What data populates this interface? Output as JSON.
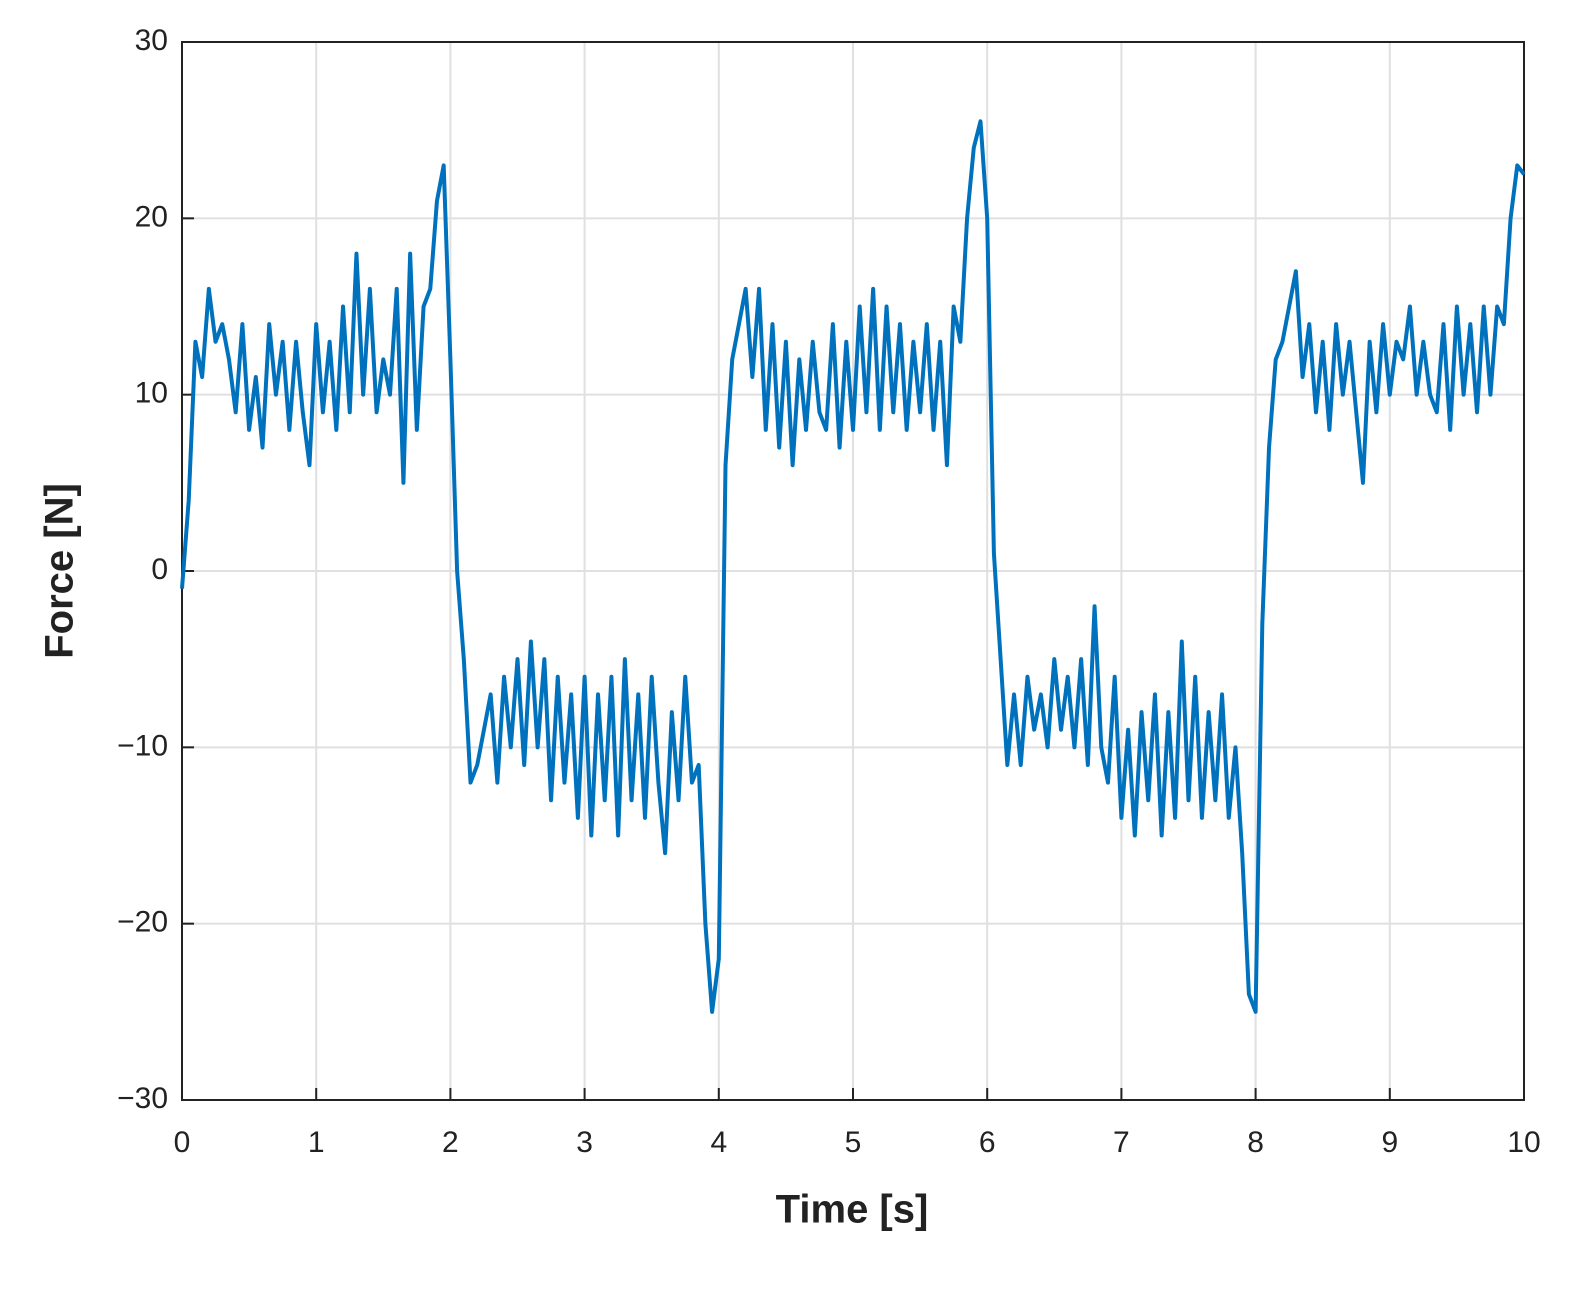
{
  "chart_data": {
    "type": "line",
    "x_label": "Time [s]",
    "y_label": "Force [N]",
    "x": [
      0,
      0.05,
      0.1,
      0.15,
      0.2,
      0.25,
      0.3,
      0.35,
      0.4,
      0.45,
      0.5,
      0.55,
      0.6,
      0.65,
      0.7,
      0.75,
      0.8,
      0.85,
      0.9,
      0.95,
      1,
      1.05,
      1.1,
      1.15,
      1.2,
      1.25,
      1.3,
      1.35,
      1.4,
      1.45,
      1.5,
      1.55,
      1.6,
      1.65,
      1.7,
      1.75,
      1.8,
      1.85,
      1.9,
      1.95,
      2,
      2.05,
      2.1,
      2.15,
      2.2,
      2.25,
      2.3,
      2.35,
      2.4,
      2.45,
      2.5,
      2.55,
      2.6,
      2.65,
      2.7,
      2.75,
      2.8,
      2.85,
      2.9,
      2.95,
      3,
      3.05,
      3.1,
      3.15,
      3.2,
      3.25,
      3.3,
      3.35,
      3.4,
      3.45,
      3.5,
      3.55,
      3.6,
      3.65,
      3.7,
      3.75,
      3.8,
      3.85,
      3.9,
      3.95,
      4,
      4.05,
      4.1,
      4.15,
      4.2,
      4.25,
      4.3,
      4.35,
      4.4,
      4.45,
      4.5,
      4.55,
      4.6,
      4.65,
      4.7,
      4.75,
      4.8,
      4.85,
      4.9,
      4.95,
      5,
      5.05,
      5.1,
      5.15,
      5.2,
      5.25,
      5.3,
      5.35,
      5.4,
      5.45,
      5.5,
      5.55,
      5.6,
      5.65,
      5.7,
      5.75,
      5.8,
      5.85,
      5.9,
      5.95,
      6,
      6.05,
      6.1,
      6.15,
      6.2,
      6.25,
      6.3,
      6.35,
      6.4,
      6.45,
      6.5,
      6.55,
      6.6,
      6.65,
      6.7,
      6.75,
      6.8,
      6.85,
      6.9,
      6.95,
      7,
      7.05,
      7.1,
      7.15,
      7.2,
      7.25,
      7.3,
      7.35,
      7.4,
      7.45,
      7.5,
      7.55,
      7.6,
      7.65,
      7.7,
      7.75,
      7.8,
      7.85,
      7.9,
      7.95,
      8,
      8.05,
      8.1,
      8.15,
      8.2,
      8.25,
      8.3,
      8.35,
      8.4,
      8.45,
      8.5,
      8.55,
      8.6,
      8.65,
      8.7,
      8.75,
      8.8,
      8.85,
      8.9,
      8.95,
      9,
      9.05,
      9.1,
      9.15,
      9.2,
      9.25,
      9.3,
      9.35,
      9.4,
      9.45,
      9.5,
      9.55,
      9.6,
      9.65,
      9.7,
      9.75,
      9.8,
      9.85,
      9.9,
      9.95,
      10
    ],
    "values": [
      -1,
      4,
      13,
      11,
      16,
      13,
      14,
      12,
      9,
      14,
      8,
      11,
      7,
      14,
      10,
      13,
      8,
      13,
      9,
      6,
      14,
      9,
      13,
      8,
      15,
      9,
      18,
      10,
      16,
      9,
      12,
      10,
      16,
      5,
      18,
      8,
      15,
      16,
      21,
      23,
      12,
      0,
      -5,
      -12,
      -11,
      -9,
      -7,
      -12,
      -6,
      -10,
      -5,
      -11,
      -4,
      -10,
      -5,
      -13,
      -6,
      -12,
      -7,
      -14,
      -6,
      -15,
      -7,
      -13,
      -6,
      -15,
      -5,
      -13,
      -7,
      -14,
      -6,
      -12,
      -16,
      -8,
      -13,
      -6,
      -12,
      -11,
      -20,
      -25,
      -22,
      6,
      12,
      14,
      16,
      11,
      16,
      8,
      14,
      7,
      13,
      6,
      12,
      8,
      13,
      9,
      8,
      14,
      7,
      13,
      8,
      15,
      9,
      16,
      8,
      15,
      9,
      14,
      8,
      13,
      9,
      14,
      8,
      13,
      6,
      15,
      13,
      20,
      24,
      25.5,
      20,
      1,
      -5,
      -11,
      -7,
      -11,
      -6,
      -9,
      -7,
      -10,
      -5,
      -9,
      -6,
      -10,
      -5,
      -11,
      -2,
      -10,
      -12,
      -6,
      -14,
      -9,
      -15,
      -8,
      -13,
      -7,
      -15,
      -8,
      -14,
      -4,
      -13,
      -6,
      -14,
      -8,
      -13,
      -7,
      -14,
      -10,
      -16,
      -24,
      -25,
      -3,
      7,
      12,
      13,
      15,
      17,
      11,
      14,
      9,
      13,
      8,
      14,
      10,
      13,
      9,
      5,
      13,
      9,
      14,
      10,
      13,
      12,
      15,
      10,
      13,
      10,
      9,
      14,
      8,
      15,
      10,
      14,
      9,
      15,
      10,
      15,
      14,
      20,
      23,
      22.5
    ],
    "color": "#0072BD",
    "xlim": [
      0,
      10
    ],
    "xticks": [
      0,
      1,
      2,
      3,
      4,
      5,
      6,
      7,
      8,
      9,
      10
    ],
    "ylim": [
      -30,
      30
    ],
    "yticks": [
      {
        "value": -30,
        "label": "−30"
      },
      {
        "value": -20,
        "label": "−20"
      },
      {
        "value": -10,
        "label": "−10"
      },
      0,
      10,
      20,
      30
    ],
    "grid": true
  }
}
